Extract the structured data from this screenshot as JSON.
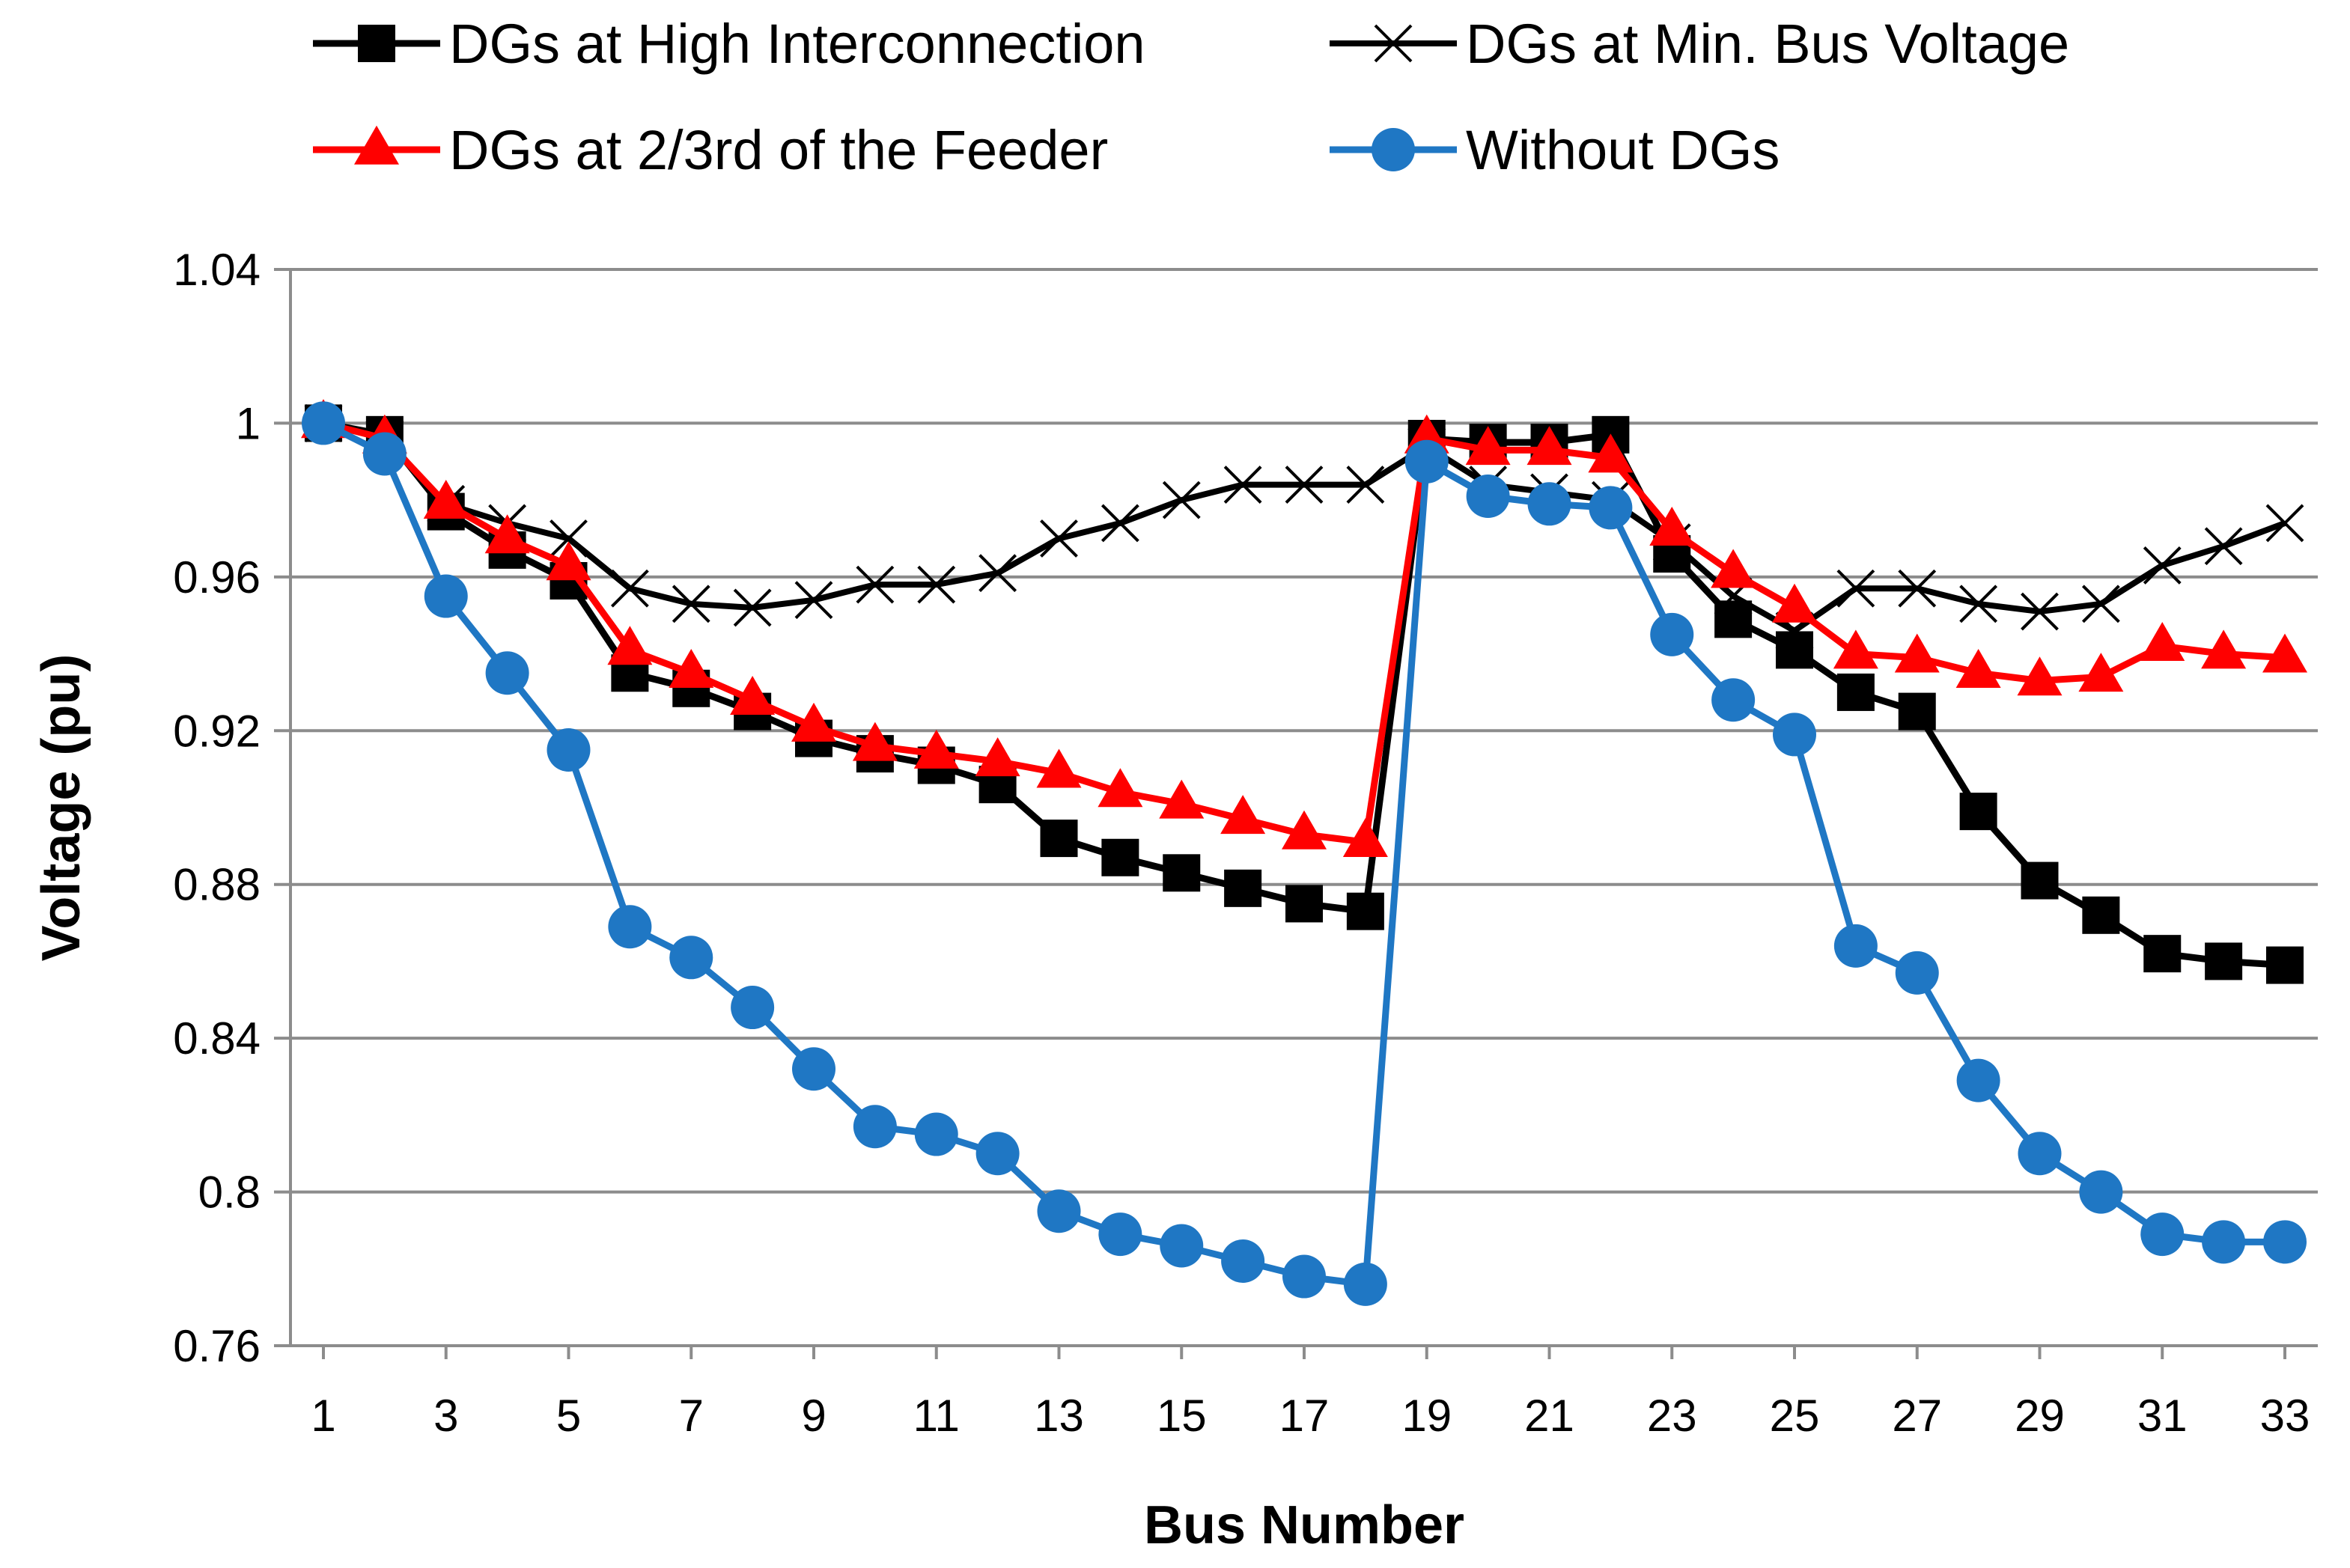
{
  "chart_data": {
    "type": "line",
    "title": "",
    "xlabel": "Bus Number",
    "ylabel": "Voltage (pu)",
    "x": [
      1,
      2,
      3,
      4,
      5,
      6,
      7,
      8,
      9,
      10,
      11,
      12,
      13,
      14,
      15,
      16,
      17,
      18,
      19,
      20,
      21,
      22,
      23,
      24,
      25,
      26,
      27,
      28,
      29,
      30,
      31,
      32,
      33
    ],
    "x_tick_labels": [
      "1",
      "3",
      "5",
      "7",
      "9",
      "11",
      "13",
      "15",
      "17",
      "19",
      "21",
      "23",
      "25",
      "27",
      "29",
      "31",
      "33"
    ],
    "xlim": [
      1,
      33
    ],
    "y_tick_labels": [
      "0.76",
      "0.8",
      "0.84",
      "0.88",
      "0.92",
      "0.96",
      "1",
      "1.04"
    ],
    "ylim": [
      0.76,
      1.04
    ],
    "grid": "horizontal",
    "legend_position": "top",
    "series": [
      {
        "name": "DGs at High Interconnection",
        "color": "#000000",
        "marker": "square",
        "values": [
          1.0,
          0.997,
          0.977,
          0.967,
          0.959,
          0.935,
          0.931,
          0.925,
          0.918,
          0.914,
          0.911,
          0.906,
          0.892,
          0.887,
          0.883,
          0.879,
          0.875,
          0.873,
          0.996,
          0.995,
          0.995,
          0.997,
          0.966,
          0.949,
          0.941,
          0.93,
          0.925,
          0.899,
          0.881,
          0.872,
          0.862,
          0.86,
          0.859
        ]
      },
      {
        "name": "DGs at Min. Bus Voltage",
        "color": "#000000",
        "marker": "x",
        "values": [
          1.0,
          0.996,
          0.979,
          0.974,
          0.97,
          0.957,
          0.953,
          0.952,
          0.954,
          0.958,
          0.958,
          0.961,
          0.97,
          0.974,
          0.98,
          0.984,
          0.984,
          0.984,
          0.994,
          0.984,
          0.982,
          0.98,
          0.969,
          0.955,
          0.946,
          0.957,
          0.957,
          0.953,
          0.951,
          0.953,
          0.963,
          0.968,
          0.974
        ]
      },
      {
        "name": "DGs at 2/3rd of the Feeder",
        "color": "#ff0000",
        "marker": "triangle",
        "values": [
          1.0,
          0.996,
          0.979,
          0.97,
          0.963,
          0.941,
          0.935,
          0.928,
          0.921,
          0.916,
          0.914,
          0.912,
          0.909,
          0.904,
          0.901,
          0.897,
          0.893,
          0.891,
          0.996,
          0.993,
          0.993,
          0.991,
          0.972,
          0.961,
          0.952,
          0.94,
          0.939,
          0.935,
          0.933,
          0.934,
          0.942,
          0.94,
          0.939
        ]
      },
      {
        "name": "Without DGs",
        "color": "#1f77c4",
        "marker": "circle",
        "values": [
          1.0,
          0.992,
          0.955,
          0.935,
          0.915,
          0.869,
          0.861,
          0.848,
          0.832,
          0.817,
          0.815,
          0.81,
          0.795,
          0.789,
          0.786,
          0.782,
          0.778,
          0.776,
          0.99,
          0.981,
          0.979,
          0.978,
          0.945,
          0.928,
          0.919,
          0.864,
          0.857,
          0.829,
          0.81,
          0.8,
          0.789,
          0.787,
          0.787
        ]
      }
    ]
  }
}
